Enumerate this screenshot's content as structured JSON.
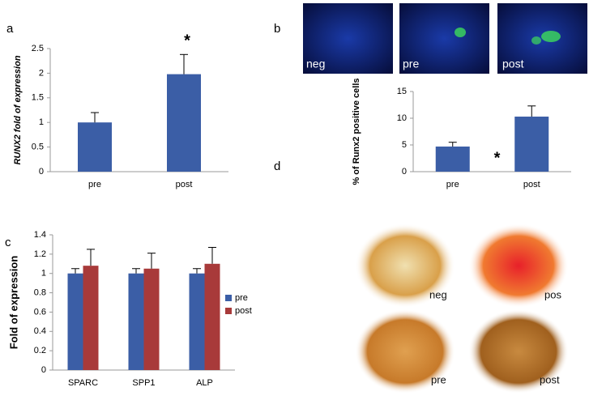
{
  "panel_labels": [
    "a",
    "b",
    "c",
    "d"
  ],
  "image_labels": {
    "b": [
      "neg",
      "pre",
      "post"
    ],
    "d": [
      "neg",
      "pos",
      "pre",
      "post"
    ]
  },
  "chart_data": [
    {
      "type": "bar",
      "ylabel": "RUNX2 fold of expression",
      "categories": [
        "pre",
        "post"
      ],
      "values": [
        1,
        1.98
      ],
      "errors": [
        0.2,
        0.4
      ],
      "color": "#3b5ea6",
      "ylim": [
        0,
        2.5
      ],
      "yticks": [
        0,
        0.5,
        1,
        1.5,
        2,
        2.5
      ],
      "annotation": "*"
    },
    {
      "type": "bar",
      "ylabel": "% of Runx2 positive cells",
      "categories": [
        "pre",
        "post"
      ],
      "values": [
        4.7,
        10.3
      ],
      "errors": [
        0.8,
        2.0
      ],
      "color": "#3b5ea6",
      "ylim": [
        0,
        15
      ],
      "yticks": [
        0,
        5,
        10,
        15
      ],
      "annotation": "*"
    },
    {
      "type": "bar",
      "ylabel": "Fold of expression",
      "categories": [
        "SPARC",
        "SPP1",
        "ALP"
      ],
      "series": [
        {
          "name": "pre",
          "color": "#3b5ea6",
          "values": [
            1,
            1,
            1
          ],
          "errors": [
            0.05,
            0.05,
            0.05
          ]
        },
        {
          "name": "post",
          "color": "#a83a3a",
          "values": [
            1.08,
            1.05,
            1.1
          ],
          "errors": [
            0.17,
            0.16,
            0.17
          ]
        }
      ],
      "ylim": [
        0,
        1.4
      ],
      "yticks": [
        0,
        0.2,
        0.4,
        0.6,
        0.8,
        1,
        1.2,
        1.4
      ],
      "legend": "right"
    }
  ]
}
